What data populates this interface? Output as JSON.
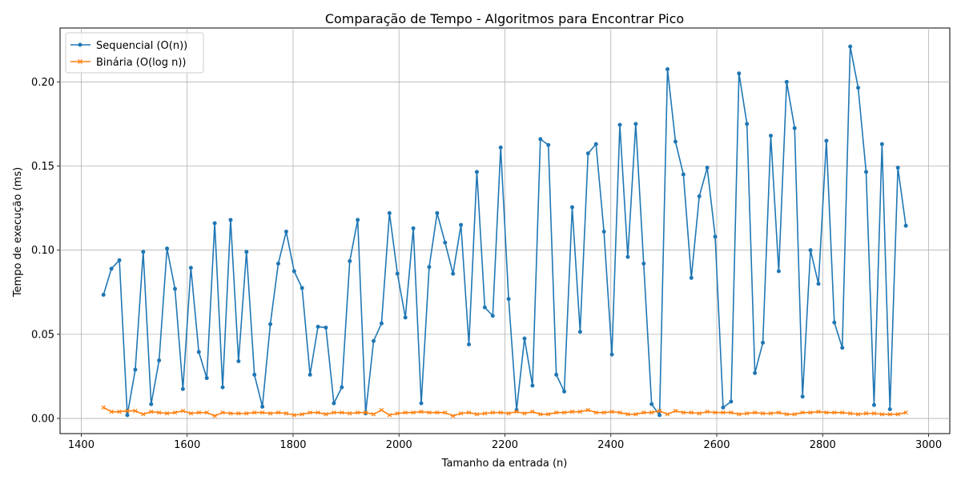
{
  "chart_data": {
    "type": "line",
    "title": "Comparação de Tempo - Algoritmos para Encontrar Pico",
    "xlabel": "Tamanho da entrada (n)",
    "ylabel": "Tempo de execução (ms)",
    "xlim": [
      1360,
      3040
    ],
    "ylim": [
      -0.009,
      0.232
    ],
    "xticks": [
      1400,
      1600,
      1800,
      2000,
      2200,
      2400,
      2600,
      2800,
      3000
    ],
    "yticks": [
      0.0,
      0.05,
      0.1,
      0.15,
      0.2
    ],
    "ytick_labels": [
      "0.00",
      "0.05",
      "0.10",
      "0.15",
      "0.20"
    ],
    "grid": true,
    "legend_position": "top-left",
    "x": [
      1442,
      1457,
      1472,
      1487,
      1502,
      1517,
      1532,
      1547,
      1562,
      1577,
      1592,
      1607,
      1622,
      1637,
      1652,
      1667,
      1682,
      1697,
      1712,
      1727,
      1742,
      1757,
      1772,
      1787,
      1802,
      1817,
      1832,
      1847,
      1862,
      1877,
      1892,
      1907,
      1922,
      1937,
      1952,
      1967,
      1982,
      1997,
      2012,
      2027,
      2042,
      2057,
      2072,
      2087,
      2102,
      2117,
      2132,
      2147,
      2162,
      2177,
      2192,
      2207,
      2222,
      2237,
      2252,
      2267,
      2282,
      2297,
      2312,
      2327,
      2342,
      2357,
      2372,
      2387,
      2402,
      2417,
      2432,
      2447,
      2462,
      2477,
      2492,
      2507,
      2522,
      2537,
      2552,
      2567,
      2582,
      2597,
      2612,
      2627,
      2642,
      2657,
      2672,
      2687,
      2702,
      2717,
      2732,
      2747,
      2762,
      2777,
      2792,
      2807,
      2822,
      2837,
      2852,
      2867,
      2882,
      2897,
      2912,
      2927,
      2942,
      2957
    ],
    "series": [
      {
        "name": "Sequencial (O(n))",
        "color": "#1f77b4",
        "marker": "circle",
        "values": [
          0.0735,
          0.089,
          0.094,
          0.002,
          0.029,
          0.099,
          0.0085,
          0.0345,
          0.101,
          0.077,
          0.0175,
          0.0895,
          0.0395,
          0.024,
          0.116,
          0.0185,
          0.118,
          0.034,
          0.099,
          0.026,
          0.007,
          0.056,
          0.092,
          0.111,
          0.0875,
          0.0775,
          0.026,
          0.0545,
          0.054,
          0.009,
          0.0185,
          0.0935,
          0.118,
          0.003,
          0.046,
          0.0565,
          0.122,
          0.086,
          0.06,
          0.113,
          0.009,
          0.09,
          0.122,
          0.1045,
          0.086,
          0.115,
          0.044,
          0.1465,
          0.066,
          0.061,
          0.161,
          0.071,
          0.005,
          0.0475,
          0.0195,
          0.166,
          0.1625,
          0.026,
          0.016,
          0.1255,
          0.0515,
          0.1575,
          0.163,
          0.111,
          0.038,
          0.1745,
          0.096,
          0.175,
          0.092,
          0.0085,
          0.002,
          0.2075,
          0.1645,
          0.145,
          0.0835,
          0.132,
          0.149,
          0.108,
          0.0065,
          0.01,
          0.205,
          0.175,
          0.027,
          0.045,
          0.168,
          0.0875,
          0.2,
          0.1725,
          0.013,
          0.1,
          0.08,
          0.165,
          0.057,
          0.042,
          0.221,
          0.1965,
          0.1465,
          0.008,
          0.163,
          0.0055,
          0.149,
          0.1145
        ]
      },
      {
        "name": "Binária (O(log n))",
        "color": "#ff7f0e",
        "marker": "x",
        "values": [
          0.0065,
          0.004,
          0.004,
          0.0045,
          0.0045,
          0.0025,
          0.004,
          0.0035,
          0.003,
          0.0035,
          0.0045,
          0.003,
          0.0035,
          0.0035,
          0.0015,
          0.0035,
          0.003,
          0.003,
          0.003,
          0.0035,
          0.0035,
          0.003,
          0.0035,
          0.003,
          0.002,
          0.0025,
          0.0035,
          0.0035,
          0.0025,
          0.0035,
          0.0035,
          0.003,
          0.0035,
          0.0035,
          0.0025,
          0.005,
          0.002,
          0.003,
          0.0035,
          0.0035,
          0.004,
          0.0035,
          0.0035,
          0.0035,
          0.0015,
          0.003,
          0.0035,
          0.0025,
          0.003,
          0.0035,
          0.0035,
          0.003,
          0.004,
          0.003,
          0.004,
          0.0025,
          0.0025,
          0.0035,
          0.0035,
          0.004,
          0.004,
          0.005,
          0.0035,
          0.0035,
          0.004,
          0.0035,
          0.0025,
          0.0025,
          0.0035,
          0.0035,
          0.0045,
          0.0025,
          0.0045,
          0.0035,
          0.0035,
          0.003,
          0.004,
          0.0035,
          0.0035,
          0.0035,
          0.0025,
          0.003,
          0.0035,
          0.003,
          0.003,
          0.0035,
          0.0025,
          0.0025,
          0.0035,
          0.0035,
          0.004,
          0.0035,
          0.0035,
          0.0035,
          0.003,
          0.0025,
          0.003,
          0.003,
          0.0025,
          0.0025,
          0.0025,
          0.0035
        ]
      }
    ]
  }
}
